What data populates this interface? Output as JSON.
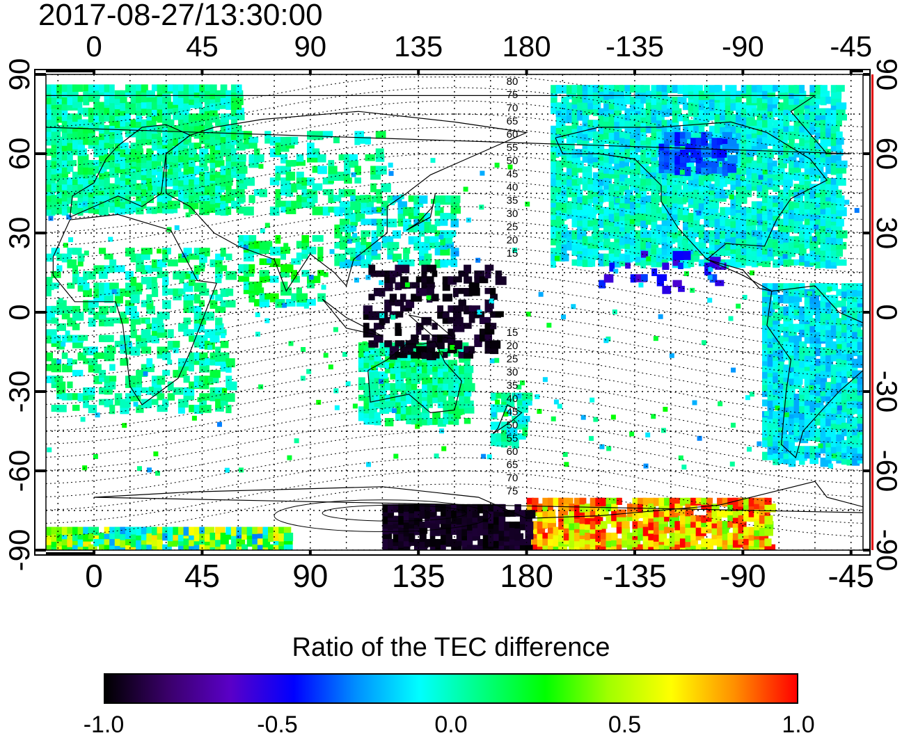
{
  "timestamp": "2017-08-27/13:30:00",
  "axes": {
    "lon_ticks_top": [
      "0",
      "45",
      "90",
      "135",
      "180",
      "-135",
      "-90",
      "-45"
    ],
    "lon_ticks_bottom": [
      "0",
      "45",
      "90",
      "135",
      "180",
      "-135",
      "-90",
      "-45"
    ],
    "lat_ticks_left": [
      "90",
      "60",
      "30",
      "0",
      "-30",
      "-60",
      "-90"
    ],
    "lat_ticks_right": [
      "90",
      "60",
      "30",
      "0",
      "-30",
      "-60",
      "-90"
    ],
    "lon_range": [
      -20,
      320
    ],
    "lat_range": [
      -90,
      90
    ]
  },
  "magnetic_latitude_labels": [
    "80",
    "75",
    "70",
    "65",
    "60",
    "55",
    "50",
    "45",
    "40",
    "35",
    "30",
    "25",
    "20",
    "15",
    "15",
    "20",
    "25",
    "30",
    "35",
    "40",
    "45",
    "50",
    "55",
    "60",
    "65",
    "70",
    "75"
  ],
  "colorbar": {
    "title": "Ratio of the TEC difference",
    "ticks": [
      "-1.0",
      "-0.5",
      "0.0",
      "0.5",
      "1.0"
    ],
    "range": [
      -1.0,
      1.0
    ],
    "colors": [
      "#000000",
      "#3a006a",
      "#5a00c8",
      "#0000ff",
      "#0090ff",
      "#00ffff",
      "#00ff80",
      "#00ff00",
      "#a0ff00",
      "#ffff00",
      "#ff9000",
      "#ff0000"
    ]
  },
  "map_style": {
    "grid": "dotted",
    "coastlines": true,
    "background": "#ffffff",
    "magnetic_contours": true
  }
}
